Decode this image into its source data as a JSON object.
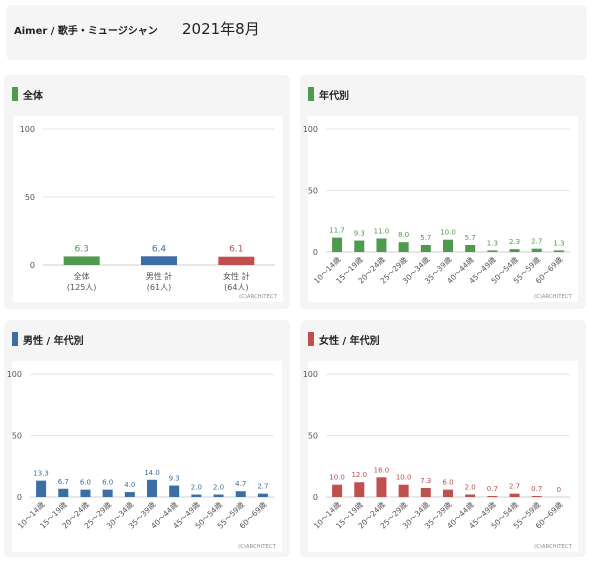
{
  "header": {
    "artist": "Aimer / 歌手・ミュージシャン",
    "period": "2021年8月"
  },
  "credit": "(C)ARCHITECT",
  "colors": {
    "all": "#4e9a4e",
    "male": "#3a6ea5",
    "female": "#c0504d",
    "grid": "#e6e6e6",
    "axis": "#555555"
  },
  "panels": [
    {
      "title": "全体",
      "color": "#4e9a4e"
    },
    {
      "title": "年代別",
      "color": "#4e9a4e"
    },
    {
      "title": "男性 / 年代別",
      "color": "#3a6ea5"
    },
    {
      "title": "女性 / 年代別",
      "color": "#c0504d"
    }
  ],
  "chart_data": [
    {
      "type": "bar",
      "title": "全体",
      "categories": [
        [
          "全体",
          "(125人)"
        ],
        [
          "男性 計",
          "(61人)"
        ],
        [
          "女性 計",
          "(64人)"
        ]
      ],
      "values": [
        6.3,
        6.4,
        6.1
      ],
      "value_labels": [
        "6.3",
        "6.4",
        "6.1"
      ],
      "colors": [
        "#4e9a4e",
        "#3a6ea5",
        "#c0504d"
      ],
      "yticks": [
        "0",
        "50",
        "100"
      ],
      "ylim": [
        0,
        100
      ],
      "grid": true
    },
    {
      "type": "bar",
      "title": "年代別",
      "categories": [
        "10～14歳",
        "15～19歳",
        "20～24歳",
        "25～29歳",
        "30～34歳",
        "35～39歳",
        "40～44歳",
        "45～49歳",
        "50～54歳",
        "55～59歳",
        "60～69歳"
      ],
      "values": [
        11.7,
        9.3,
        11.0,
        8.0,
        5.7,
        10.0,
        5.7,
        1.3,
        2.3,
        2.7,
        1.3
      ],
      "value_labels": [
        "11.7",
        "9.3",
        "11.0",
        "8.0",
        "5.7",
        "10.0",
        "5.7",
        "1.3",
        "2.3",
        "2.7",
        "1.3"
      ],
      "color": "#4e9a4e",
      "yticks": [
        "0",
        "50",
        "100"
      ],
      "ylim": [
        0,
        100
      ],
      "grid": true
    },
    {
      "type": "bar",
      "title": "男性 / 年代別",
      "categories": [
        "10～14歳",
        "15～19歳",
        "20～24歳",
        "25～29歳",
        "30～34歳",
        "35～39歳",
        "40～44歳",
        "45～49歳",
        "50～54歳",
        "55～59歳",
        "60～69歳"
      ],
      "values": [
        13.3,
        6.7,
        6.0,
        6.0,
        4.0,
        14.0,
        9.3,
        2.0,
        2.0,
        4.7,
        2.7
      ],
      "value_labels": [
        "13.3",
        "6.7",
        "6.0",
        "6.0",
        "4.0",
        "14.0",
        "9.3",
        "2.0",
        "2.0",
        "4.7",
        "2.7"
      ],
      "color": "#3a6ea5",
      "yticks": [
        "0",
        "50",
        "100"
      ],
      "ylim": [
        0,
        100
      ],
      "grid": true
    },
    {
      "type": "bar",
      "title": "女性 / 年代別",
      "categories": [
        "10～14歳",
        "15～19歳",
        "20～24歳",
        "25～29歳",
        "30～34歳",
        "35～39歳",
        "40～44歳",
        "45～49歳",
        "50～54歳",
        "55～59歳",
        "60～69歳"
      ],
      "values": [
        10.0,
        12.0,
        16.0,
        10.0,
        7.3,
        6.0,
        2.0,
        0.7,
        2.7,
        0.7,
        0
      ],
      "value_labels": [
        "10.0",
        "12.0",
        "16.0",
        "10.0",
        "7.3",
        "6.0",
        "2.0",
        "0.7",
        "2.7",
        "0.7",
        "0"
      ],
      "color": "#c0504d",
      "yticks": [
        "0",
        "50",
        "100"
      ],
      "ylim": [
        0,
        100
      ],
      "grid": true
    }
  ]
}
